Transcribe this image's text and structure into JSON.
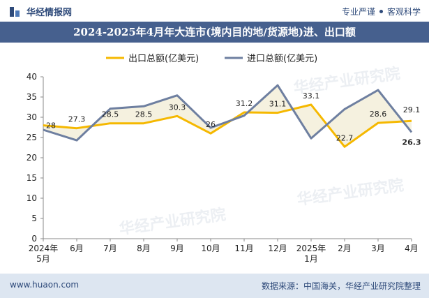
{
  "brand": {
    "name": "华经情报网"
  },
  "tagline": {
    "left": "专业严谨",
    "right": "客观科学"
  },
  "title": "2024-2025年4月年大连市(境内目的地/货源地)进、出口额",
  "footer": {
    "url": "www.huaon.com",
    "source": "数据来源：中国海关，华经产业研究院整理"
  },
  "watermark": "华经产业研究院",
  "colors": {
    "export": "#f5b800",
    "import": "#6e7fa0",
    "title_bg": "#46608e",
    "footer_bg": "#dde6f1",
    "fill_gap": "#f3efd9"
  },
  "chart_data": {
    "type": "line",
    "title": "2024-2025年4月年大连市(境内目的地/货源地)进、出口额",
    "categories": [
      "2024年\n5月",
      "6月",
      "7月",
      "8月",
      "9月",
      "10月",
      "11月",
      "12月",
      "2025年\n1月",
      "2月",
      "3月",
      "4月"
    ],
    "series": [
      {
        "name": "出口总额(亿美元)",
        "values": [
          28,
          27.3,
          28.5,
          28.5,
          30.3,
          26,
          31.2,
          31.1,
          33.1,
          22.7,
          28.6,
          29.1
        ],
        "labels": [
          "28",
          "27.3",
          "28.5",
          "28.5",
          "30.3",
          "26",
          "31.2",
          "31.1",
          "33.1",
          "22.7",
          "28.6",
          "29.1"
        ]
      },
      {
        "name": "进口总额(亿美元)",
        "values": [
          26.9,
          24.3,
          32.1,
          32.7,
          35.4,
          27.4,
          30.4,
          37.9,
          24.8,
          32.0,
          36.7,
          26.3
        ],
        "labels": [
          "",
          "",
          "",
          "",
          "",
          "",
          "",
          "",
          "",
          "",
          "",
          "26.3"
        ]
      }
    ],
    "ylim": [
      0,
      40
    ],
    "yticks": [
      0,
      5,
      10,
      15,
      20,
      25,
      30,
      35,
      40
    ],
    "grid": false,
    "legend": "top-center"
  }
}
